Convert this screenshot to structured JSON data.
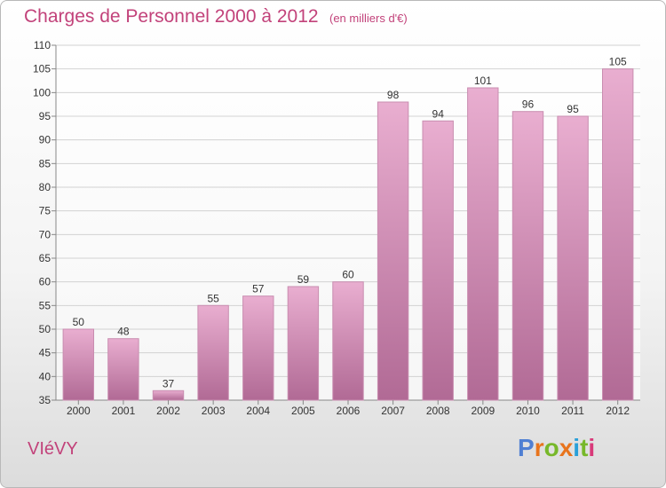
{
  "header": {
    "title": "Charges de Personnel 2000 à 2012",
    "unit_note": "(en milliers d'€)"
  },
  "footer": {
    "place_name": "VIéVY",
    "logo_text": "Proxiti"
  },
  "colors": {
    "title": "#c2427a",
    "bar_top": "#e9aed0",
    "bar_bottom": "#b16a95",
    "grid": "#d2d2d2",
    "logo_letters": [
      "#4f7fd3",
      "#e8741d",
      "#77b82a",
      "#e8741d",
      "#2aa0d8",
      "#77b82a",
      "#d83a7a"
    ]
  },
  "chart_data": {
    "type": "bar",
    "title": "Charges de Personnel 2000 à 2012",
    "subtitle": "(en milliers d'€)",
    "categories": [
      "2000",
      "2001",
      "2002",
      "2003",
      "2004",
      "2005",
      "2006",
      "2007",
      "2008",
      "2009",
      "2010",
      "2011",
      "2012"
    ],
    "values": [
      50,
      48,
      37,
      55,
      57,
      59,
      60,
      98,
      94,
      101,
      96,
      95,
      105
    ],
    "ylim": [
      35,
      110
    ],
    "yticks": [
      35,
      40,
      45,
      50,
      55,
      60,
      65,
      70,
      75,
      80,
      85,
      90,
      95,
      100,
      105,
      110
    ],
    "grid": true,
    "data_labels": true
  }
}
